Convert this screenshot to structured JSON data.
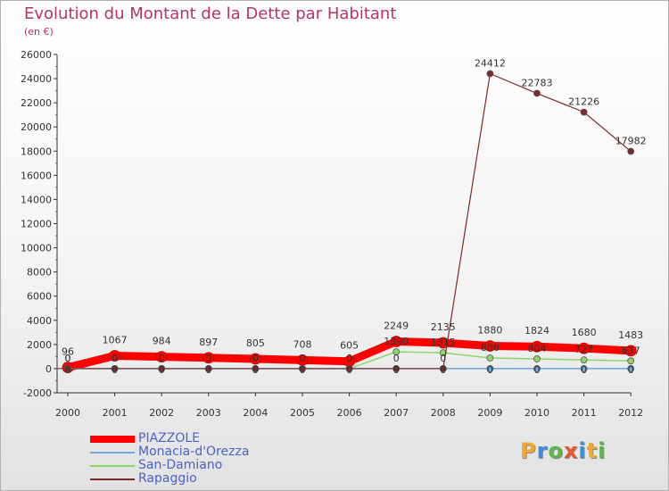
{
  "title": "Evolution du Montant de la Dette par Habitant",
  "unit": "(en €)",
  "chart_data": {
    "type": "line",
    "title": "Evolution du Montant de la Dette par Habitant",
    "ylabel": "(en €)",
    "xlabel": "",
    "categories": [
      "2000",
      "2001",
      "2002",
      "2003",
      "2004",
      "2005",
      "2006",
      "2007",
      "2008",
      "2009",
      "2010",
      "2011",
      "2012"
    ],
    "ylim": [
      -2000,
      26000
    ],
    "yticks": [
      -2000,
      0,
      2000,
      4000,
      6000,
      8000,
      10000,
      12000,
      14000,
      16000,
      18000,
      20000,
      22000,
      24000,
      26000
    ],
    "grid": false,
    "legend_position": "bottom-left",
    "series": [
      {
        "name": "PIAZZOLE",
        "color": "#ff0000",
        "values": [
          96,
          1067,
          984,
          897,
          805,
          708,
          605,
          2249,
          2135,
          1880,
          1824,
          1680,
          1483
        ],
        "labels": [
          "96",
          "1067",
          "984",
          "897",
          "805",
          "708",
          "605",
          "2249",
          "2135",
          "1880",
          "1824",
          "1680",
          "1483"
        ]
      },
      {
        "name": "Monacia-d'Orezza",
        "color": "#6fa8dc",
        "values": [
          0,
          0,
          0,
          0,
          0,
          0,
          0,
          0,
          0,
          0,
          0,
          0,
          0
        ],
        "labels": [
          "0",
          "0",
          "0",
          "0",
          "0",
          "0",
          "0",
          "0",
          "0",
          "0",
          "0",
          "0",
          "0"
        ]
      },
      {
        "name": "San-Damiano",
        "color": "#8fd46b",
        "values": [
          0,
          0,
          0,
          0,
          0,
          0,
          0,
          1390,
          1315,
          880,
          804,
          727,
          637
        ],
        "labels": [
          "0",
          "0",
          "0",
          "0",
          "0",
          "0",
          "0",
          "1390",
          "1315",
          "880",
          "804",
          "727",
          "637"
        ]
      },
      {
        "name": "Rapaggio",
        "color": "#7a2a2a",
        "values": [
          0,
          0,
          0,
          0,
          0,
          0,
          0,
          0,
          0,
          24412,
          22783,
          21226,
          17982
        ],
        "labels": [
          "0",
          "0",
          "0",
          "0",
          "0",
          "0",
          "0",
          "0",
          "0",
          "24412",
          "22783",
          "21226",
          "17982"
        ]
      }
    ]
  },
  "legend": {
    "items": [
      "PIAZZOLE",
      "Monacia-d'Orezza",
      "San-Damiano",
      "Rapaggio"
    ]
  },
  "logo": {
    "letters": [
      "P",
      "r",
      "o",
      "x",
      "i",
      "t",
      "i"
    ],
    "colors": [
      "#f0a830",
      "#3b8fd6",
      "#5bb64b",
      "#e4572e",
      "#3b8fd6",
      "#f0a830",
      "#5bb64b"
    ]
  }
}
